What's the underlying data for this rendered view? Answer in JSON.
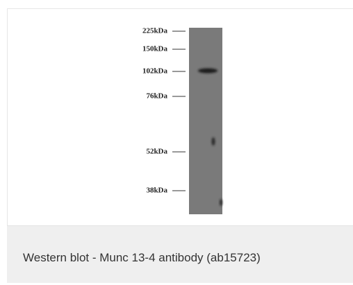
{
  "figure": {
    "markers": [
      "225kDa",
      "150kDa",
      "102kDa",
      "76kDa",
      "52kDa",
      "38kDa"
    ]
  },
  "caption": "Western blot - Munc 13-4 antibody (ab15723)"
}
